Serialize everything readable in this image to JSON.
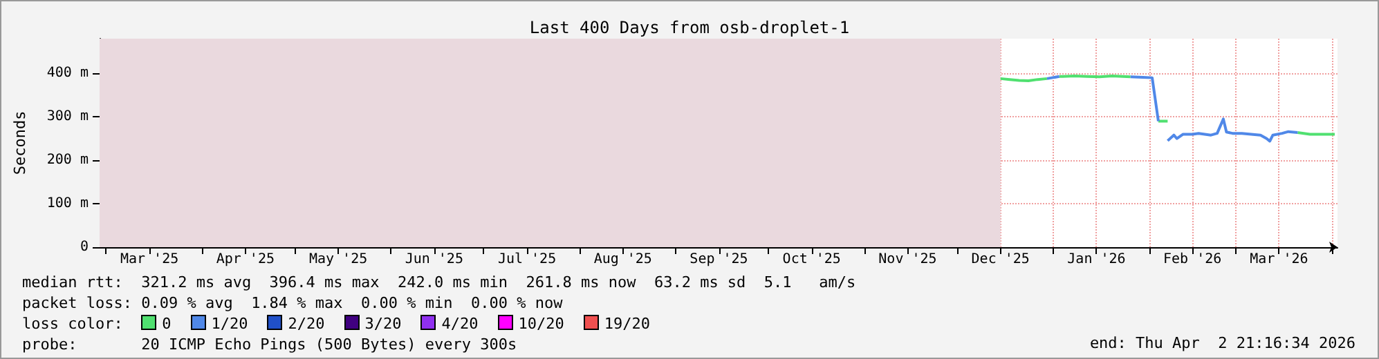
{
  "chart_data": {
    "type": "line",
    "title": "Last 400 Days from osb-droplet-1",
    "ylabel": "Seconds",
    "legend_title": "loss color:",
    "legend": "bottom",
    "grid": true,
    "marker": "none",
    "line_style": "solid",
    "xlim": [
      "2025-02-26T21:16",
      "2026-04-02T21:16"
    ],
    "xticks": [
      {
        "value": "2025-03-01",
        "label": null
      },
      {
        "value": "2025-03-15",
        "label": "Mar '25"
      },
      {
        "value": "2025-04-01",
        "label": null
      },
      {
        "value": "2025-04-15",
        "label": "Apr '25"
      },
      {
        "value": "2025-05-01",
        "label": null
      },
      {
        "value": "2025-05-15",
        "label": "May '25"
      },
      {
        "value": "2025-06-01",
        "label": null
      },
      {
        "value": "2025-06-15",
        "label": "Jun '25"
      },
      {
        "value": "2025-07-01",
        "label": null
      },
      {
        "value": "2025-07-15",
        "label": "Jul '25"
      },
      {
        "value": "2025-08-01",
        "label": null
      },
      {
        "value": "2025-08-15",
        "label": "Aug '25"
      },
      {
        "value": "2025-09-01",
        "label": null
      },
      {
        "value": "2025-09-15",
        "label": "Sep '25"
      },
      {
        "value": "2025-10-01",
        "label": null
      },
      {
        "value": "2025-10-15",
        "label": "Oct '25"
      },
      {
        "value": "2025-11-01",
        "label": null
      },
      {
        "value": "2025-11-15",
        "label": "Nov '25"
      },
      {
        "value": "2025-12-01",
        "label": null
      },
      {
        "value": "2025-12-15",
        "label": "Dec '25"
      },
      {
        "value": "2026-01-01",
        "label": null
      },
      {
        "value": "2026-01-15",
        "label": "Jan '26"
      },
      {
        "value": "2026-02-01",
        "label": null
      },
      {
        "value": "2026-02-15",
        "label": "Feb '26"
      },
      {
        "value": "2026-03-01",
        "label": null
      },
      {
        "value": "2026-03-15",
        "label": "Mar '26"
      },
      {
        "value": "2026-04-01",
        "label": null
      }
    ],
    "ylim": [
      0,
      480
    ],
    "yticks": [
      0,
      {
        "value": 100,
        "label": "100 m"
      },
      {
        "value": 200,
        "label": "200 m"
      },
      {
        "value": 300,
        "label": "300 m"
      },
      {
        "value": 400,
        "label": "400 m"
      }
    ],
    "bands": [
      {
        "axis": "x",
        "from": "2025-02-26T21:16",
        "to": "2025-12-15",
        "label": null,
        "color": "#ead9de"
      }
    ],
    "series": [
      {
        "name": "0",
        "color": "#50e070",
        "x": [
          "2025-12-15",
          "2025-12-18",
          "2025-12-21",
          "2025-12-24",
          "2025-12-27",
          "2025-12-30",
          "2026-01-01",
          "2026-01-03",
          "2026-01-04",
          "2026-01-08",
          "2026-01-12",
          "2026-01-16",
          "2026-01-20",
          "2026-01-26",
          "2026-02-01",
          "2026-02-04",
          "2026-02-07",
          "2026-02-20",
          "2026-03-21",
          "2026-03-25",
          "2026-03-29",
          "2026-04-02"
        ],
        "values": [
          388,
          386,
          384,
          383,
          386,
          388,
          null,
          393,
          393,
          394,
          393,
          392,
          394,
          392,
          null,
          290,
          290,
          null,
          264,
          260,
          260,
          260
        ]
      },
      {
        "name": "1/20",
        "color": "#5088e8",
        "x": [
          "2025-12-30",
          "2026-01-03",
          "2026-01-10",
          "2026-01-26",
          "2026-01-30",
          "2026-02-02",
          "2026-02-03",
          "2026-02-04",
          "2026-02-05",
          "2026-02-07",
          "2026-02-09",
          "2026-02-10",
          "2026-02-12",
          "2026-02-15",
          "2026-02-17",
          "2026-02-19",
          "2026-02-21",
          "2026-02-23",
          "2026-02-25",
          "2026-02-26",
          "2026-02-28",
          "2026-03-03",
          "2026-03-06",
          "2026-03-09",
          "2026-03-11",
          "2026-03-12",
          "2026-03-13",
          "2026-03-16",
          "2026-03-18",
          "2026-03-21"
        ],
        "values": [
          388,
          393,
          null,
          392,
          391,
          390,
          340,
          290,
          null,
          245,
          258,
          250,
          260,
          260,
          262,
          260,
          258,
          262,
          295,
          265,
          262,
          262,
          260,
          258,
          250,
          244,
          258,
          262,
          266,
          264
        ]
      },
      {
        "name": "2/20",
        "color": "#2050c8"
      },
      {
        "name": "3/20",
        "color": "#400080"
      },
      {
        "name": "4/20",
        "color": "#9030f0"
      },
      {
        "name": "10/20",
        "color": "#ff00ff"
      },
      {
        "name": "19/20",
        "color": "#f05050"
      }
    ],
    "annotations": [
      "median rtt:  321.2 ms avg  396.4 ms max  242.0 ms min  261.8 ms now  63.2 ms sd  5.1   am/s",
      "packet loss: 0.09 % avg  1.84 % max  0.00 % min  0.00 % now",
      "probe:       20 ICMP Echo Pings (500 Bytes) every 300s",
      "end: Thu Apr  2 21:16:34 2026"
    ]
  }
}
